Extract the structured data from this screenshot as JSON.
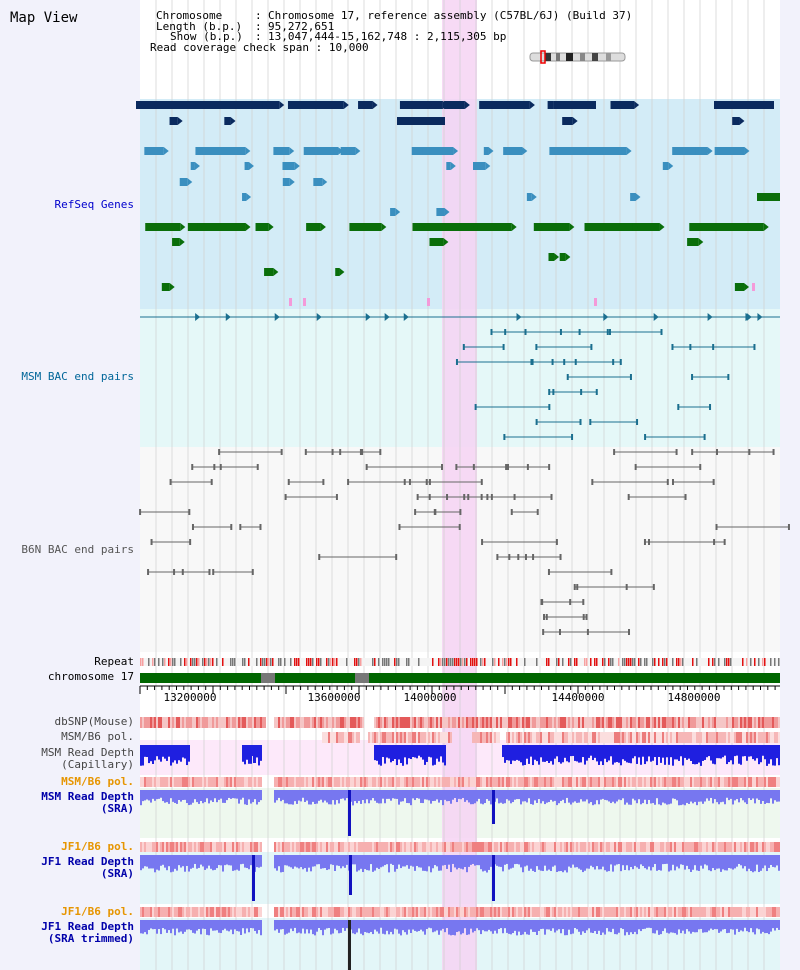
{
  "app": {
    "title": "Map View"
  },
  "info": {
    "chromosome_label": "Chromosome",
    "chromosome_value": "Chromosome 17, reference assembly (C57BL/6J) (Build 37)",
    "length_label": "Length (b.p.)",
    "length_value": "95,272,651",
    "show_label": "Show (b.p.)",
    "show_value": "13,047,444-15,162,748 : 2,115,305 bp",
    "coverage_label": "Read coverage check span",
    "coverage_value": "10,000"
  },
  "tracks": {
    "refseq": "RefSeq Genes",
    "msm_bac": "MSM BAC end pairs",
    "b6n_bac": "B6N BAC end pairs",
    "repeat": "Repeat",
    "chromosome": "chromosome 17",
    "dbsnp": "dbSNP(Mouse)",
    "msm_b6_pol_1": "MSM/B6 pol.",
    "msm_read_depth_cap": "MSM Read Depth\n(Capillary)",
    "msm_b6_pol_2": "MSM/B6 pol.",
    "msm_read_depth_sra": "MSM Read Depth\n(SRA)",
    "jf1_b6_pol_1": "JF1/B6 pol.",
    "jf1_read_depth_sra": "JF1 Read Depth\n(SRA)",
    "jf1_b6_pol_2": "JF1/B6 pol.",
    "jf1_read_depth_trim": "JF1 Read Depth\n(SRA trimmed)"
  },
  "axis": {
    "ticks": [
      "13200000",
      "13600000",
      "14000000",
      "14400000",
      "14800000"
    ]
  },
  "colors": {
    "refseq_label": "#0000cc",
    "msm_bac_label": "#006699",
    "b6n_label": "#555555",
    "orange_label": "#e69500",
    "blue_label": "#0000aa",
    "highlight": "#f6d4f3",
    "refseq_bg": "#d3ecf7",
    "bac_bg": "#e5f8f8",
    "chrom_green": "#006600"
  }
}
